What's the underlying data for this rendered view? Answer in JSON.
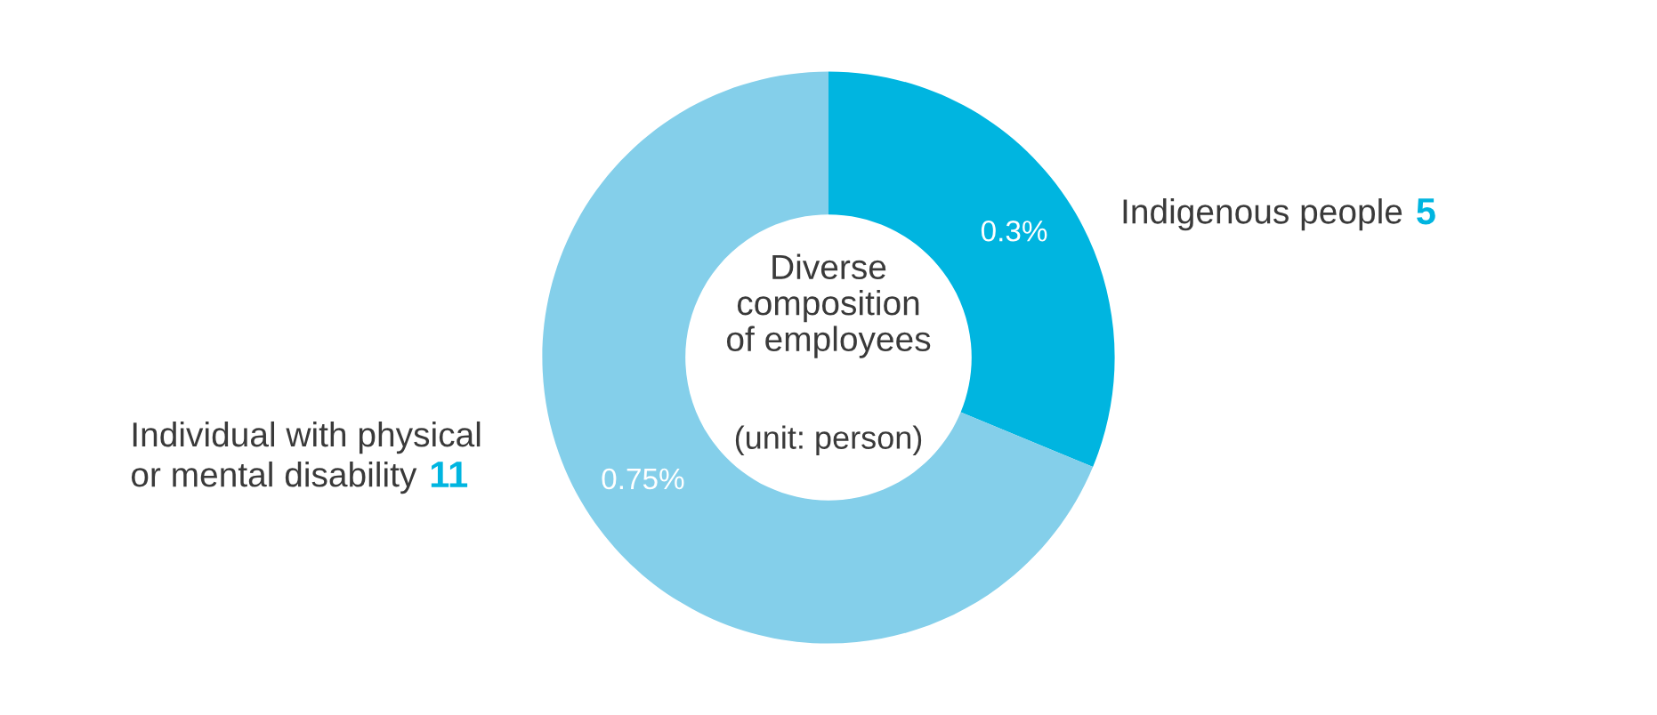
{
  "chart_data": {
    "type": "donut",
    "title": "Diverse\ncomposition\nof employees",
    "annotations": [
      "(unit: person)",
      "0.3%",
      "0.75%"
    ],
    "categories": [
      "Indigenous people",
      "Individual with physical\nor mental disability"
    ],
    "values": [
      5,
      11
    ],
    "colors": [
      "#00b5e0",
      "#84cfea"
    ],
    "value_labels": [
      "5",
      "11"
    ]
  }
}
